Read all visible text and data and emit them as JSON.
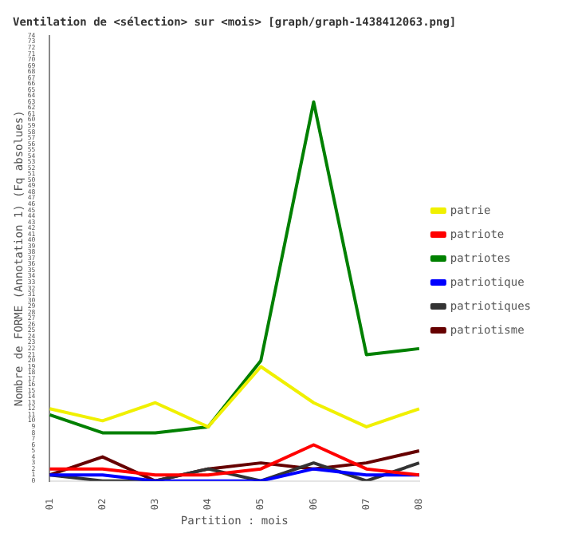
{
  "chart_data": {
    "type": "line",
    "title": "Ventilation de <sélection> sur <mois> [graph/graph-1438412063.png]",
    "xlabel": "Partition : mois",
    "ylabel": "Nombre de FORME (Annotation 1) (Fq absolues)",
    "categories": [
      "01",
      "02",
      "03",
      "04",
      "05",
      "06",
      "07",
      "08"
    ],
    "series": [
      {
        "name": "patrie",
        "color": "#f0f000",
        "values": [
          12,
          10,
          13,
          9,
          19,
          13,
          9,
          12
        ]
      },
      {
        "name": "patriote",
        "color": "#ff0000",
        "values": [
          2,
          2,
          1,
          1,
          2,
          6,
          2,
          1
        ]
      },
      {
        "name": "patriotes",
        "color": "#008000",
        "values": [
          11,
          8,
          8,
          9,
          20,
          63,
          21,
          22
        ]
      },
      {
        "name": "patriotique",
        "color": "#0000ff",
        "values": [
          1,
          1,
          0,
          0,
          0,
          2,
          1,
          1
        ]
      },
      {
        "name": "patriotiques",
        "color": "#333333",
        "values": [
          1,
          0,
          0,
          2,
          0,
          3,
          0,
          3
        ]
      },
      {
        "name": "patriotisme",
        "color": "#660000",
        "values": [
          1,
          4,
          0,
          2,
          3,
          2,
          3,
          5
        ]
      }
    ],
    "ylim": [
      0,
      74
    ],
    "yticks": [
      0,
      1,
      2,
      3,
      4,
      5,
      6,
      7,
      8,
      9,
      10,
      11,
      12,
      13,
      14,
      15,
      16,
      17,
      18,
      19,
      20,
      21,
      22,
      23,
      24,
      25,
      26,
      27,
      28,
      29,
      30,
      31,
      32,
      33,
      34,
      35,
      36,
      37,
      38,
      39,
      40,
      41,
      42,
      43,
      44,
      45,
      46,
      47,
      48,
      49,
      50,
      51,
      52,
      53,
      54,
      55,
      56,
      57,
      58,
      59,
      60,
      61,
      62,
      63,
      64,
      65,
      66,
      67,
      68,
      69,
      70,
      71,
      72,
      73,
      74
    ],
    "grid": false,
    "legend": "right",
    "marker": "none",
    "line_style": "solid"
  }
}
